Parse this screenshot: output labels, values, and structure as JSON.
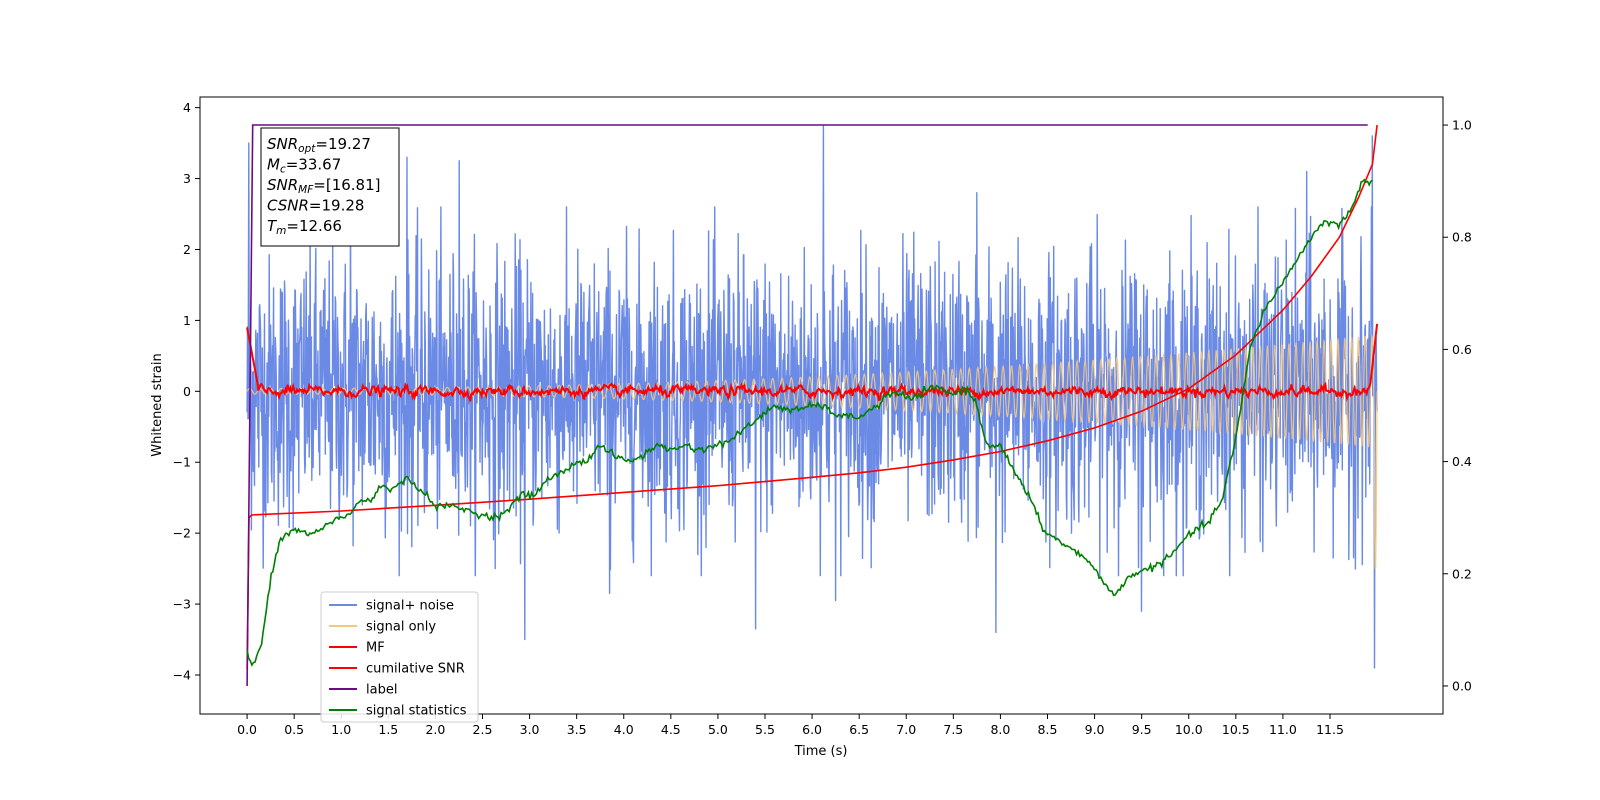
{
  "chart_data": {
    "type": "line",
    "title": "",
    "xlabel": "Time (s)",
    "ylabel": "Whitened strain",
    "xlim": [
      -0.5,
      12.7
    ],
    "ylim": [
      -4.55,
      4.15
    ],
    "y2lim": [
      -0.05,
      1.05
    ],
    "grid": false,
    "legend_position": "lower-left",
    "x_ticks": [
      0.0,
      0.5,
      1.0,
      1.5,
      2.0,
      2.5,
      3.0,
      3.5,
      4.0,
      4.5,
      5.0,
      5.5,
      6.0,
      6.5,
      7.0,
      7.5,
      8.0,
      8.5,
      9.0,
      9.5,
      10.0,
      10.5,
      11.0,
      11.5
    ],
    "x_tick_labels": [
      "0.0",
      "0.5",
      "1.0",
      "1.5",
      "2.0",
      "2.5",
      "3.0",
      "3.5",
      "4.0",
      "4.5",
      "5.0",
      "5.5",
      "6.0",
      "6.5",
      "7.0",
      "7.5",
      "8.0",
      "8.5",
      "9.0",
      "9.5",
      "10.0",
      "10.5",
      "11.0",
      "11.5"
    ],
    "y_ticks": [
      -4,
      -3,
      -2,
      -1,
      0,
      1,
      2,
      3,
      4
    ],
    "y_tick_labels": [
      "−4",
      "−3",
      "−2",
      "−1",
      "0",
      "1",
      "2",
      "3",
      "4"
    ],
    "y2_ticks": [
      0.0,
      0.2,
      0.4,
      0.6,
      0.8,
      1.0
    ],
    "y2_tick_labels": [
      "0.0",
      "0.2",
      "0.4",
      "0.6",
      "0.8",
      "1.0"
    ],
    "stats": [
      {
        "main": "SNR",
        "sub": "opt",
        "value": "=19.27"
      },
      {
        "main": "M",
        "sub": "c",
        "value": "=33.67"
      },
      {
        "main": "SNR",
        "sub": "MF",
        "value": "=[16.81]"
      },
      {
        "main": "CSNR",
        "sub": "",
        "value": "=19.28"
      },
      {
        "main": "T",
        "sub": "m",
        "value": "=12.66"
      }
    ],
    "series": [
      {
        "name": "signal+ noise",
        "color": "#6b8ae6",
        "axis": "left",
        "noise_std": 1.0,
        "x_range": [
          0.0,
          12.0
        ],
        "peaks": [
          [
            0.02,
            3.5
          ],
          [
            1.1,
            2.7
          ],
          [
            1.7,
            3.3
          ],
          [
            2.25,
            3.25
          ],
          [
            2.95,
            3.15
          ],
          [
            6.12,
            3.75
          ],
          [
            7.75,
            2.8
          ],
          [
            11.25,
            3.1
          ],
          [
            11.95,
            3.6
          ],
          [
            2.95,
            -3.5
          ],
          [
            5.4,
            -3.35
          ],
          [
            7.95,
            -3.4
          ],
          [
            9.5,
            -3.1
          ],
          [
            11.97,
            -3.9
          ],
          [
            3.85,
            -2.85
          ],
          [
            6.25,
            -2.95
          ]
        ]
      },
      {
        "name": "signal only",
        "color": "#f5c77e",
        "axis": "left",
        "x_range": [
          0.0,
          12.0
        ],
        "amp_start": 0.04,
        "amp_end": 0.8,
        "final_peak": 2.55
      },
      {
        "name": "MF",
        "color": "#ff0000",
        "axis": "left",
        "x_range": [
          0.0,
          12.0
        ],
        "start_value": 0.9,
        "baseline": 0.0,
        "end_value": 0.95
      },
      {
        "name": "cumilative SNR",
        "color": "#ff0000",
        "axis": "right",
        "x": [
          0.0,
          0.02,
          0.05,
          1.0,
          2.0,
          3.0,
          4.0,
          5.0,
          6.0,
          6.5,
          7.0,
          7.5,
          8.0,
          8.5,
          9.0,
          9.5,
          10.0,
          10.5,
          11.0,
          11.3,
          11.6,
          11.8,
          11.95,
          12.0
        ],
        "values": [
          0.03,
          0.3,
          0.305,
          0.312,
          0.322,
          0.333,
          0.345,
          0.357,
          0.372,
          0.38,
          0.39,
          0.403,
          0.418,
          0.437,
          0.46,
          0.49,
          0.53,
          0.59,
          0.67,
          0.73,
          0.8,
          0.87,
          0.93,
          1.0
        ]
      },
      {
        "name": "label",
        "color": "#6a0d83",
        "axis": "right",
        "x": [
          0.0,
          0.06,
          11.9
        ],
        "values": [
          0.0,
          1.0,
          1.0
        ]
      },
      {
        "name": "signal statistics",
        "color": "#008000",
        "axis": "right",
        "x": [
          0.0,
          0.05,
          0.15,
          0.25,
          0.35,
          0.5,
          0.65,
          0.8,
          0.95,
          1.05,
          1.2,
          1.3,
          1.45,
          1.55,
          1.7,
          1.85,
          2.0,
          2.2,
          2.4,
          2.6,
          2.75,
          2.9,
          3.05,
          3.2,
          3.35,
          3.5,
          3.6,
          3.75,
          3.9,
          4.05,
          4.2,
          4.35,
          4.5,
          4.65,
          4.8,
          5.0,
          5.15,
          5.3,
          5.45,
          5.6,
          5.8,
          6.0,
          6.1,
          6.3,
          6.5,
          6.7,
          6.8,
          6.95,
          7.05,
          7.25,
          7.35,
          7.5,
          7.65,
          7.75,
          7.85,
          8.0,
          8.15,
          8.3,
          8.45,
          8.6,
          8.8,
          9.0,
          9.2,
          9.4,
          9.6,
          9.8,
          10.0,
          10.2,
          10.35,
          10.5,
          10.65,
          10.8,
          11.0,
          11.15,
          11.3,
          11.45,
          11.6,
          11.75,
          11.85,
          11.95
        ],
        "values": [
          0.06,
          0.035,
          0.07,
          0.19,
          0.26,
          0.28,
          0.27,
          0.28,
          0.3,
          0.3,
          0.33,
          0.33,
          0.36,
          0.35,
          0.37,
          0.35,
          0.32,
          0.32,
          0.31,
          0.3,
          0.31,
          0.34,
          0.34,
          0.37,
          0.38,
          0.4,
          0.4,
          0.43,
          0.41,
          0.4,
          0.41,
          0.43,
          0.42,
          0.43,
          0.42,
          0.43,
          0.44,
          0.46,
          0.48,
          0.5,
          0.49,
          0.5,
          0.5,
          0.48,
          0.48,
          0.5,
          0.52,
          0.52,
          0.51,
          0.53,
          0.53,
          0.52,
          0.53,
          0.5,
          0.43,
          0.43,
          0.38,
          0.34,
          0.28,
          0.26,
          0.24,
          0.21,
          0.16,
          0.2,
          0.21,
          0.23,
          0.27,
          0.29,
          0.33,
          0.44,
          0.6,
          0.67,
          0.72,
          0.76,
          0.8,
          0.83,
          0.82,
          0.86,
          0.9,
          0.9
        ]
      }
    ]
  }
}
